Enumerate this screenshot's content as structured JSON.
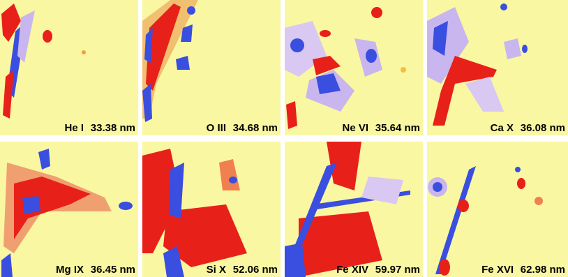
{
  "panels": [
    {
      "ion": "He I",
      "wavelength": "33.38 nm"
    },
    {
      "ion": "O III",
      "wavelength": "34.68 nm"
    },
    {
      "ion": "Ne VI",
      "wavelength": "35.64 nm"
    },
    {
      "ion": "Ca X",
      "wavelength": "36.08 nm"
    },
    {
      "ion": "Mg IX",
      "wavelength": "36.45 nm"
    },
    {
      "ion": "Si X",
      "wavelength": "52.06 nm"
    },
    {
      "ion": "Fe XIV",
      "wavelength": "59.97 nm"
    },
    {
      "ion": "Fe XVI",
      "wavelength": "62.98 nm"
    }
  ]
}
